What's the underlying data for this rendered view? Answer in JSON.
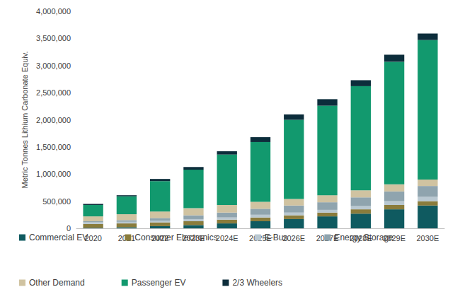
{
  "chart_data": {
    "type": "bar",
    "stacked": true,
    "grid": false,
    "legend": "bottom",
    "y_label": "Metric Tonnes Lithium Carbonate Equiv.",
    "categories": [
      "2020",
      "2021",
      "2022",
      "2023E",
      "2024E",
      "2025E",
      "2026E",
      "2027E",
      "2028E",
      "2029E",
      "2030E"
    ],
    "ylim": [
      0,
      4000000
    ],
    "yticks": [
      0,
      {
        "value": 500000,
        "label": "500,000"
      },
      {
        "value": 1000000,
        "label": "1,000,000"
      },
      {
        "value": 1500000,
        "label": "1,500,000"
      },
      {
        "value": 2000000,
        "label": "2,000,000"
      },
      {
        "value": 2500000,
        "label": "2,500,000"
      },
      {
        "value": 3000000,
        "label": "3,000,000"
      },
      {
        "value": 3500000,
        "label": "3,500,000"
      },
      {
        "value": 4000000,
        "label": "4,000,000"
      }
    ],
    "series": [
      {
        "name": "Commercial EV",
        "color": "#0f5a60",
        "values": [
          10000,
          20000,
          40000,
          60000,
          90000,
          130000,
          170000,
          220000,
          270000,
          350000,
          420000
        ]
      },
      {
        "name": "Consumer Electronics",
        "color": "#8a7c3c",
        "values": [
          70000,
          70000,
          70000,
          70000,
          70000,
          70000,
          70000,
          70000,
          80000,
          80000,
          80000
        ]
      },
      {
        "name": "E-Bus",
        "color": "#b9c8d1",
        "values": [
          30000,
          30000,
          30000,
          40000,
          40000,
          50000,
          50000,
          50000,
          60000,
          70000,
          80000
        ]
      },
      {
        "name": "Energy Storage",
        "color": "#8fa4ae",
        "values": [
          20000,
          30000,
          50000,
          70000,
          90000,
          110000,
          130000,
          140000,
          160000,
          180000,
          200000
        ]
      },
      {
        "name": "Other Demand",
        "color": "#d0c3a1",
        "values": [
          90000,
          110000,
          120000,
          130000,
          140000,
          130000,
          120000,
          130000,
          130000,
          130000,
          120000
        ]
      },
      {
        "name": "Passenger EV",
        "color": "#12996e",
        "values": [
          210000,
          330000,
          560000,
          710000,
          930000,
          1100000,
          1460000,
          1650000,
          1920000,
          2260000,
          2570000
        ]
      },
      {
        "name": "2/3 Wheelers",
        "color": "#0c2d3b",
        "values": [
          20000,
          20000,
          40000,
          50000,
          60000,
          90000,
          100000,
          120000,
          110000,
          130000,
          120000
        ]
      }
    ]
  }
}
